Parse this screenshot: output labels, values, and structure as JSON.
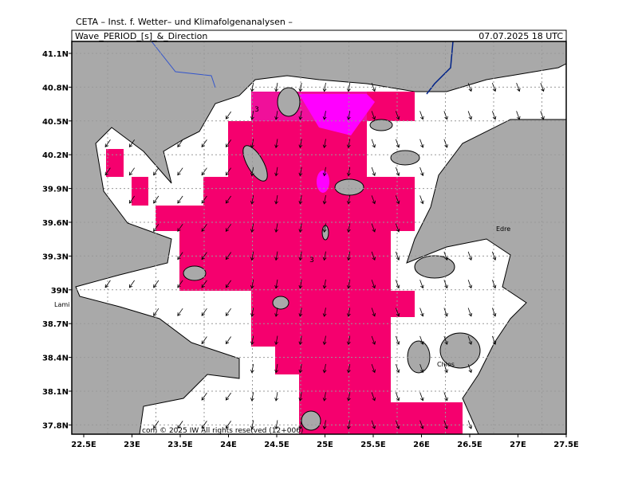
{
  "header": {
    "org": "CETA – Inst. f. Wetter– und Klimafolgenanalysen –",
    "title": "Wave_PERIOD_[s]_&_Direction",
    "datetime": "07.07.2025 18 UTC"
  },
  "axes": {
    "lon_labels": [
      "22.5E",
      "23E",
      "23.5E",
      "24E",
      "24.5E",
      "25E",
      "25.5E",
      "26E",
      "26.5E",
      "27E",
      "27.5E"
    ],
    "lat_labels": [
      "41.1N",
      "40.8N",
      "40.5N",
      "40.2N",
      "39.9N",
      "39.6N",
      "39.3N",
      "39N",
      "38.7N",
      "38.4N",
      "38.1N",
      "37.8N"
    ]
  },
  "map": {
    "contour_labels": [
      "3",
      "3"
    ],
    "place_labels": [
      "Lami",
      "Edre",
      "Chios"
    ]
  },
  "footer": "com © 2025 IW  All rights reserved (12+006)"
}
